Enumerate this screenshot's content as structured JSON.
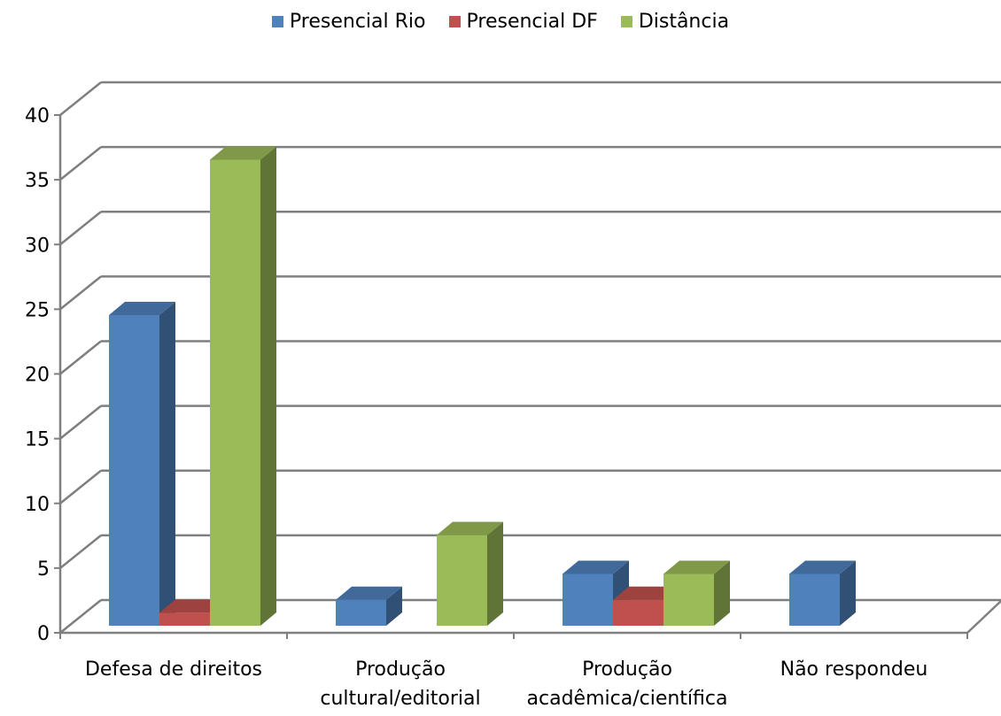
{
  "chart_data": {
    "type": "bar",
    "categories": [
      [
        "Defesa de direitos"
      ],
      [
        "Produção",
        "cultural/editorial"
      ],
      [
        "Produção",
        "acadêmica/científica"
      ],
      [
        "Não respondeu"
      ]
    ],
    "series": [
      {
        "name": "Presencial Rio",
        "values": [
          24,
          2,
          4,
          4
        ],
        "color": "#4f81bd"
      },
      {
        "name": "Presencial DF",
        "values": [
          1,
          0,
          2,
          0
        ],
        "color": "#c0504d"
      },
      {
        "name": "Distância",
        "values": [
          36,
          7,
          4,
          0
        ],
        "color": "#9bbb59"
      }
    ],
    "ylim": [
      0,
      40
    ],
    "yticks": [
      "0",
      "5",
      "10",
      "15",
      "20",
      "25",
      "30",
      "35",
      "40"
    ],
    "grid": true,
    "legend": "top-center",
    "style": "3d-clustered-column"
  }
}
